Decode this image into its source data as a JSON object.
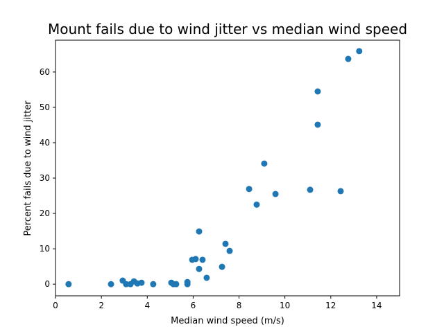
{
  "chart_data": {
    "type": "scatter",
    "title": "Mount fails due to wind jitter vs median wind speed",
    "xlabel": "Median wind speed (m/s)",
    "ylabel": "Percent fails due to wind jitter",
    "xlim": [
      0,
      15
    ],
    "ylim": [
      -3.3,
      69
    ],
    "xticks": [
      0,
      2,
      4,
      6,
      8,
      10,
      12,
      14
    ],
    "yticks": [
      0,
      10,
      20,
      30,
      40,
      50,
      60
    ],
    "grid": false,
    "color": "#1f77b4",
    "points": [
      [
        0.57,
        0
      ],
      [
        2.42,
        0
      ],
      [
        2.93,
        1.0
      ],
      [
        3.08,
        0
      ],
      [
        3.27,
        0
      ],
      [
        3.42,
        0.8
      ],
      [
        3.57,
        0.2
      ],
      [
        3.75,
        0.4
      ],
      [
        4.26,
        0
      ],
      [
        5.05,
        0.4
      ],
      [
        5.14,
        0
      ],
      [
        5.26,
        0
      ],
      [
        5.75,
        0.6
      ],
      [
        5.75,
        0
      ],
      [
        5.96,
        6.9
      ],
      [
        6.11,
        7.1
      ],
      [
        6.26,
        14.9
      ],
      [
        6.26,
        4.3
      ],
      [
        6.41,
        6.9
      ],
      [
        6.59,
        1.8
      ],
      [
        7.26,
        4.9
      ],
      [
        7.41,
        11.4
      ],
      [
        7.59,
        9.4
      ],
      [
        8.44,
        26.9
      ],
      [
        8.77,
        22.5
      ],
      [
        9.1,
        34.1
      ],
      [
        9.59,
        25.5
      ],
      [
        11.1,
        26.7
      ],
      [
        11.43,
        54.5
      ],
      [
        11.43,
        45.1
      ],
      [
        12.43,
        26.3
      ],
      [
        12.76,
        63.7
      ],
      [
        13.24,
        65.9
      ]
    ]
  }
}
